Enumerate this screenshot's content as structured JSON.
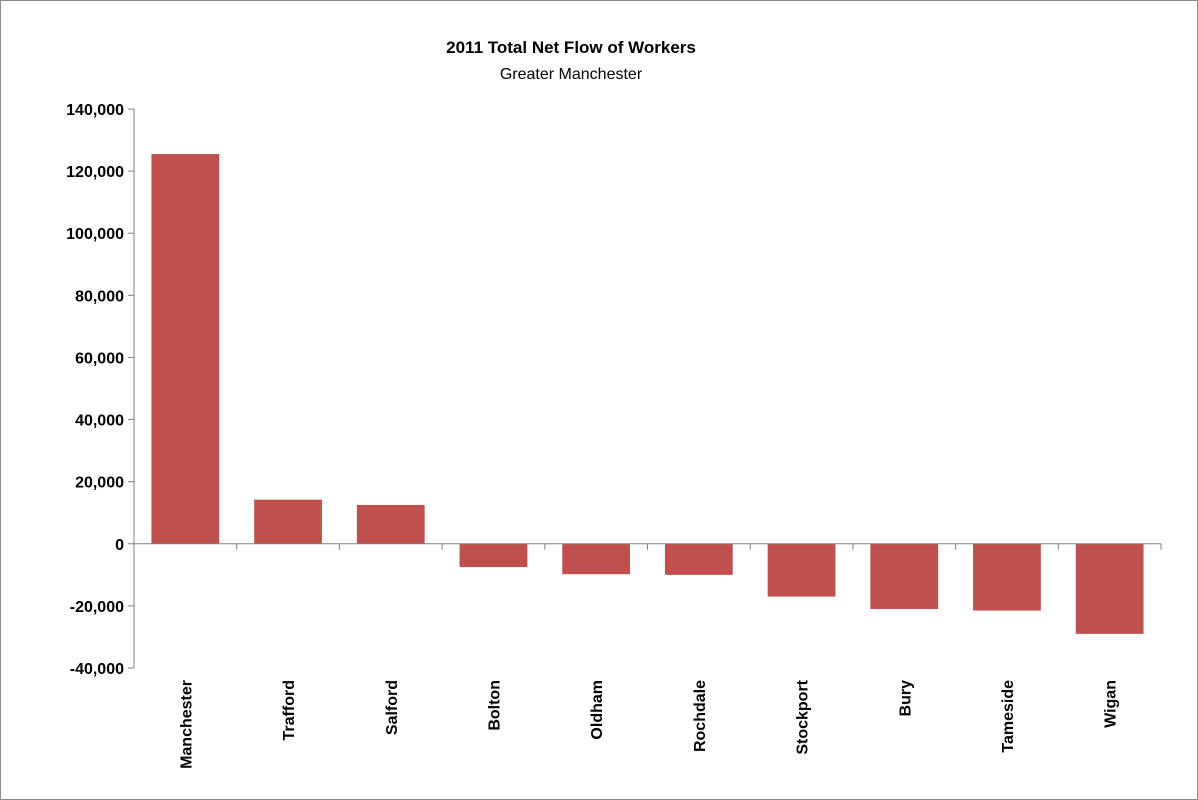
{
  "chart_data": {
    "type": "bar",
    "title": "2011 Total Net Flow of Workers",
    "subtitle": "Greater Manchester",
    "xlabel": "",
    "ylabel": "",
    "categories": [
      "Manchester",
      "Trafford",
      "Salford",
      "Bolton",
      "Oldham",
      "Rochdale",
      "Stockport",
      "Bury",
      "Tameside",
      "Wigan"
    ],
    "values": [
      125500,
      14200,
      12500,
      -7500,
      -9800,
      -10000,
      -17000,
      -21000,
      -21500,
      -29000
    ],
    "ylim": [
      -40000,
      140000
    ],
    "yticks": [
      140000,
      120000,
      100000,
      80000,
      60000,
      40000,
      20000,
      0,
      -20000,
      -40000
    ],
    "ytick_labels": [
      "140,000",
      "120,000",
      "100,000",
      "80,000",
      "60,000",
      "40,000",
      "20,000",
      "0",
      "-20,000",
      "-40,000"
    ],
    "bar_color": "#c0504d",
    "grid": false,
    "legend": "none"
  }
}
